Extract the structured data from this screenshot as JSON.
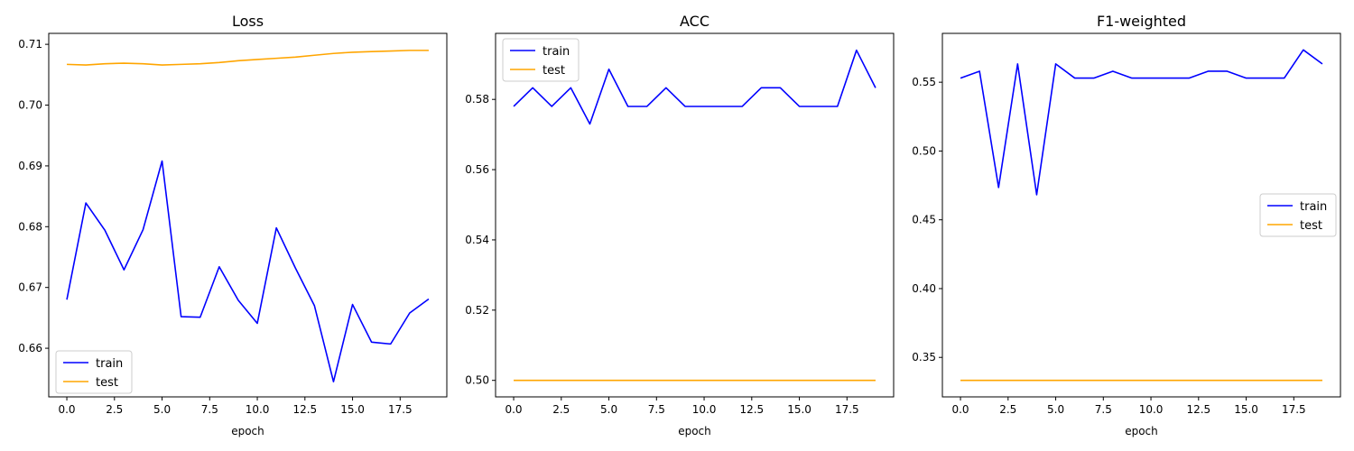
{
  "chart_data": [
    {
      "type": "line",
      "title": "Loss",
      "xlabel": "epoch",
      "ylabel": "",
      "x": [
        0,
        1,
        2,
        3,
        4,
        5,
        6,
        7,
        8,
        9,
        10,
        11,
        12,
        13,
        14,
        15,
        16,
        17,
        18,
        19
      ],
      "xlim": [
        -0.95,
        19.95
      ],
      "ylim": [
        0.652,
        0.7118
      ],
      "xticks": [
        0,
        2.5,
        5,
        7.5,
        10,
        12.5,
        15,
        17.5
      ],
      "xtick_labels": [
        "0.0",
        "2.5",
        "5.0",
        "7.5",
        "10.0",
        "12.5",
        "15.0",
        "17.5"
      ],
      "yticks": [
        0.66,
        0.67,
        0.68,
        0.69,
        0.7,
        0.71
      ],
      "ytick_labels": [
        "0.66",
        "0.67",
        "0.68",
        "0.69",
        "0.70",
        "0.71"
      ],
      "legend_position": "lower-left",
      "series": [
        {
          "name": "train",
          "color": "#0000ff",
          "values": [
            0.668,
            0.6839,
            0.6794,
            0.6729,
            0.6795,
            0.6908,
            0.6652,
            0.6651,
            0.6734,
            0.6679,
            0.6641,
            0.6798,
            0.6732,
            0.667,
            0.6545,
            0.6672,
            0.661,
            0.6607,
            0.6658,
            0.6681
          ]
        },
        {
          "name": "test",
          "color": "#ffa500",
          "values": [
            0.7067,
            0.7066,
            0.7068,
            0.7069,
            0.7068,
            0.7066,
            0.7067,
            0.7068,
            0.707,
            0.7073,
            0.7075,
            0.7077,
            0.7079,
            0.7082,
            0.7085,
            0.7087,
            0.7088,
            0.7089,
            0.709,
            0.709
          ]
        }
      ]
    },
    {
      "type": "line",
      "title": "ACC",
      "xlabel": "epoch",
      "ylabel": "",
      "x": [
        0,
        1,
        2,
        3,
        4,
        5,
        6,
        7,
        8,
        9,
        10,
        11,
        12,
        13,
        14,
        15,
        16,
        17,
        18,
        19
      ],
      "xlim": [
        -0.95,
        19.95
      ],
      "ylim": [
        0.4953,
        0.5988
      ],
      "xticks": [
        0,
        2.5,
        5,
        7.5,
        10,
        12.5,
        15,
        17.5
      ],
      "xtick_labels": [
        "0.0",
        "2.5",
        "5.0",
        "7.5",
        "10.0",
        "12.5",
        "15.0",
        "17.5"
      ],
      "yticks": [
        0.5,
        0.52,
        0.54,
        0.56,
        0.58
      ],
      "ytick_labels": [
        "0.50",
        "0.52",
        "0.54",
        "0.56",
        "0.58"
      ],
      "legend_position": "upper-left",
      "series": [
        {
          "name": "train",
          "color": "#0000ff",
          "values": [
            0.578,
            0.5833,
            0.578,
            0.5833,
            0.573,
            0.5886,
            0.578,
            0.578,
            0.5833,
            0.578,
            0.578,
            0.578,
            0.578,
            0.5833,
            0.5833,
            0.578,
            0.578,
            0.578,
            0.594,
            0.5833
          ]
        },
        {
          "name": "test",
          "color": "#ffa500",
          "values": [
            0.5,
            0.5,
            0.5,
            0.5,
            0.5,
            0.5,
            0.5,
            0.5,
            0.5,
            0.5,
            0.5,
            0.5,
            0.5,
            0.5,
            0.5,
            0.5,
            0.5,
            0.5,
            0.5,
            0.5
          ]
        }
      ]
    },
    {
      "type": "line",
      "title": "F1-weighted",
      "xlabel": "epoch",
      "ylabel": "",
      "x": [
        0,
        1,
        2,
        3,
        4,
        5,
        6,
        7,
        8,
        9,
        10,
        11,
        12,
        13,
        14,
        15,
        16,
        17,
        18,
        19
      ],
      "xlim": [
        -0.95,
        19.95
      ],
      "ylim": [
        0.3213,
        0.5855
      ],
      "xticks": [
        0,
        2.5,
        5,
        7.5,
        10,
        12.5,
        15,
        17.5
      ],
      "xtick_labels": [
        "0.0",
        "2.5",
        "5.0",
        "7.5",
        "10.0",
        "12.5",
        "15.0",
        "17.5"
      ],
      "yticks": [
        0.35,
        0.4,
        0.45,
        0.5,
        0.55
      ],
      "ytick_labels": [
        "0.35",
        "0.40",
        "0.45",
        "0.50",
        "0.55"
      ],
      "legend_position": "center-right",
      "series": [
        {
          "name": "train",
          "color": "#0000ff",
          "values": [
            0.553,
            0.558,
            0.4735,
            0.5633,
            0.4682,
            0.5633,
            0.553,
            0.553,
            0.558,
            0.553,
            0.553,
            0.553,
            0.553,
            0.558,
            0.558,
            0.553,
            0.553,
            0.553,
            0.5735,
            0.5633
          ]
        },
        {
          "name": "test",
          "color": "#ffa500",
          "values": [
            0.3333,
            0.3333,
            0.3333,
            0.3333,
            0.3333,
            0.3333,
            0.3333,
            0.3333,
            0.3333,
            0.3333,
            0.3333,
            0.3333,
            0.3333,
            0.3333,
            0.3333,
            0.3333,
            0.3333,
            0.3333,
            0.3333,
            0.3333
          ]
        }
      ]
    }
  ]
}
